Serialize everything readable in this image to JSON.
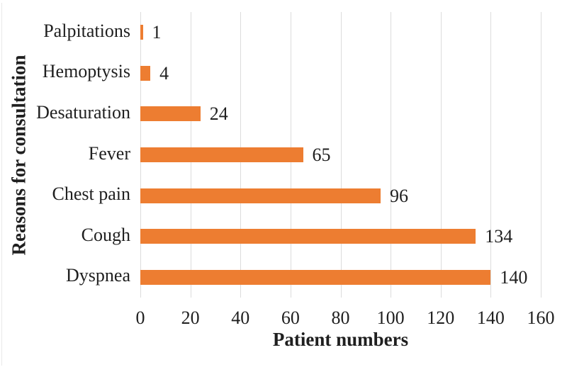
{
  "chart_data": {
    "type": "bar",
    "orientation": "horizontal",
    "title": "",
    "xlabel": "Patient numbers",
    "ylabel": "Reasons for consultation",
    "categories": [
      "Palpitations",
      "Hemoptysis",
      "Desaturation",
      "Fever",
      "Chest pain",
      "Cough",
      "Dyspnea"
    ],
    "values": [
      1,
      4,
      24,
      65,
      96,
      134,
      140
    ],
    "data_labels": [
      "1",
      "4",
      "24",
      "65",
      "96",
      "134",
      "140"
    ],
    "xlim": [
      0,
      160
    ],
    "xticks": [
      "0",
      "20",
      "40",
      "60",
      "80",
      "100",
      "120",
      "140",
      "160"
    ],
    "grid": "vertical-only",
    "legend": "none",
    "bar_color": "#ED7D31",
    "gridline_color": "#DCDCDC",
    "text_color": "#1F1F1F"
  }
}
